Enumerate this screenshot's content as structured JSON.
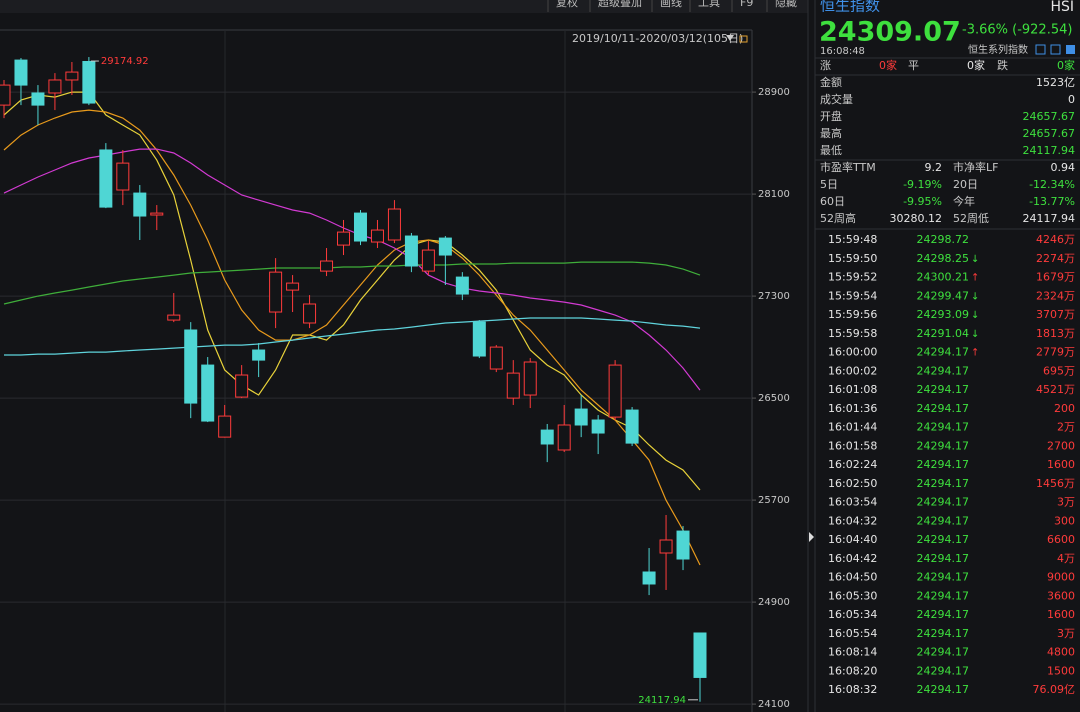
{
  "toolbar": [
    "复权",
    "超级叠加",
    "画线",
    "工具",
    "F9",
    "隐藏"
  ],
  "chart_data": {
    "type": "candlestick",
    "range_label": "2019/10/11-2020/03/12(105日)",
    "ylim": [
      24038,
      29387
    ],
    "yticks": [
      28900,
      28100,
      27300,
      26500,
      25700,
      24900,
      24100
    ],
    "grid": true,
    "up_color": "#ff3b3b",
    "down_color": "#4fd6d4",
    "candles": [
      {
        "o": 28798,
        "h": 28995,
        "l": 28696,
        "c": 28955
      },
      {
        "o": 29151,
        "h": 29167,
        "l": 28798,
        "c": 28955
      },
      {
        "o": 28893,
        "h": 28955,
        "l": 28642,
        "c": 28798
      },
      {
        "o": 28893,
        "h": 29049,
        "l": 28759,
        "c": 28995
      },
      {
        "o": 28995,
        "h": 29136,
        "l": 28877,
        "c": 29057
      },
      {
        "o": 29140,
        "h": 29174.92,
        "l": 28798,
        "c": 28814
      },
      {
        "o": 28446,
        "h": 28500,
        "l": 27990,
        "c": 27998
      },
      {
        "o": 28132,
        "h": 28446,
        "l": 28014,
        "c": 28343
      },
      {
        "o": 28108,
        "h": 28171,
        "l": 27740,
        "c": 27928
      },
      {
        "o": 27936,
        "h": 28014,
        "l": 27818,
        "c": 27951
      },
      {
        "o": 27112,
        "h": 27324,
        "l": 27096,
        "c": 27151
      },
      {
        "o": 27034,
        "h": 27096,
        "l": 26343,
        "c": 26461
      },
      {
        "o": 26759,
        "h": 26822,
        "l": 26312,
        "c": 26320
      },
      {
        "o": 26194,
        "h": 26446,
        "l": 26190,
        "c": 26359
      },
      {
        "o": 26508,
        "h": 26759,
        "l": 26500,
        "c": 26681
      },
      {
        "o": 26877,
        "h": 26932,
        "l": 26665,
        "c": 26798
      },
      {
        "o": 27175,
        "h": 27598,
        "l": 27049,
        "c": 27488
      },
      {
        "o": 27347,
        "h": 27465,
        "l": 27175,
        "c": 27402
      },
      {
        "o": 27089,
        "h": 27308,
        "l": 27049,
        "c": 27238
      },
      {
        "o": 27496,
        "h": 27677,
        "l": 27457,
        "c": 27575
      },
      {
        "o": 27700,
        "h": 27897,
        "l": 27622,
        "c": 27802
      },
      {
        "o": 27951,
        "h": 27975,
        "l": 27700,
        "c": 27732
      },
      {
        "o": 27724,
        "h": 27897,
        "l": 27677,
        "c": 27818
      },
      {
        "o": 27740,
        "h": 28053,
        "l": 27716,
        "c": 27983
      },
      {
        "o": 27771,
        "h": 27795,
        "l": 27488,
        "c": 27536
      },
      {
        "o": 27496,
        "h": 27732,
        "l": 27465,
        "c": 27661
      },
      {
        "o": 27755,
        "h": 27771,
        "l": 27387,
        "c": 27622
      },
      {
        "o": 27449,
        "h": 27488,
        "l": 27269,
        "c": 27316
      },
      {
        "o": 27096,
        "h": 27112,
        "l": 26814,
        "c": 26830
      },
      {
        "o": 26728,
        "h": 26916,
        "l": 26704,
        "c": 26900
      },
      {
        "o": 26500,
        "h": 26798,
        "l": 26446,
        "c": 26696
      },
      {
        "o": 26524,
        "h": 26814,
        "l": 26422,
        "c": 26783
      },
      {
        "o": 26249,
        "h": 26297,
        "l": 25998,
        "c": 26140
      },
      {
        "o": 26093,
        "h": 26446,
        "l": 26077,
        "c": 26289
      },
      {
        "o": 26414,
        "h": 26524,
        "l": 26194,
        "c": 26289
      },
      {
        "o": 26328,
        "h": 26367,
        "l": 26061,
        "c": 26226
      },
      {
        "o": 26351,
        "h": 26798,
        "l": 26328,
        "c": 26759
      },
      {
        "o": 26406,
        "h": 26430,
        "l": 26124,
        "c": 26147
      },
      {
        "o": 25136,
        "h": 25324,
        "l": 24955,
        "c": 25042
      },
      {
        "o": 25285,
        "h": 25583,
        "l": 24995,
        "c": 25387
      },
      {
        "o": 25457,
        "h": 25497,
        "l": 25151,
        "c": 25238
      },
      {
        "o": 24657.67,
        "h": 24657.67,
        "l": 24117.94,
        "c": 24309.07
      }
    ],
    "series": [
      {
        "color": "#e8d23a",
        "values": [
          28720,
          28838,
          28877,
          28861,
          28900,
          28900,
          28720,
          28642,
          28564,
          28367,
          28093,
          27583,
          27034,
          26720,
          26603,
          26524,
          26720,
          26995,
          26995,
          26955,
          27073,
          27269,
          27426,
          27583,
          27700,
          27740,
          27724,
          27622,
          27504,
          27347,
          27112,
          26877,
          26759,
          26681,
          26524,
          26406,
          26328,
          26265,
          26132,
          26014,
          25936,
          25779
        ]
      },
      {
        "color": "#e89a1c",
        "values": [
          28446,
          28563,
          28642,
          28697,
          28744,
          28759,
          28744,
          28697,
          28602,
          28446,
          28250,
          28014,
          27740,
          27426,
          27191,
          27034,
          26955,
          26955,
          26995,
          27073,
          27230,
          27387,
          27544,
          27661,
          27724,
          27740,
          27700,
          27598,
          27465,
          27308,
          27151,
          27034,
          26877,
          26720,
          26563,
          26446,
          26328,
          26171,
          26014,
          25700,
          25465,
          25191
        ]
      },
      {
        "color": "#d23ad2",
        "values": [
          28108,
          28171,
          28234,
          28289,
          28344,
          28383,
          28406,
          28430,
          28453,
          28453,
          28422,
          28344,
          28250,
          28171,
          28093,
          28053,
          28014,
          27975,
          27951,
          27897,
          27834,
          27779,
          27740,
          27677,
          27598,
          27465,
          27402,
          27363,
          27340,
          27324,
          27308,
          27285,
          27269,
          27253,
          27230,
          27191,
          27151,
          27097,
          26995,
          26877,
          26736,
          26563
        ]
      },
      {
        "color": "#3fae3a",
        "values": [
          27238,
          27269,
          27300,
          27324,
          27347,
          27371,
          27395,
          27418,
          27434,
          27449,
          27465,
          27481,
          27488,
          27496,
          27504,
          27512,
          27520,
          27520,
          27520,
          27520,
          27528,
          27528,
          27536,
          27536,
          27544,
          27544,
          27544,
          27552,
          27552,
          27552,
          27559,
          27559,
          27559,
          27559,
          27567,
          27567,
          27567,
          27567,
          27559,
          27544,
          27512,
          27465
        ]
      },
      {
        "color": "#5fd3dc",
        "values": [
          26838,
          26838,
          26845,
          26845,
          26853,
          26861,
          26861,
          26869,
          26877,
          26884,
          26892,
          26900,
          26908,
          26916,
          26916,
          26924,
          26940,
          26955,
          26971,
          26987,
          27002,
          27018,
          27034,
          27042,
          27057,
          27073,
          27089,
          27096,
          27104,
          27112,
          27120,
          27128,
          27128,
          27128,
          27128,
          27120,
          27112,
          27104,
          27089,
          27073,
          27065,
          27049
        ]
      }
    ]
  },
  "panel": {
    "name": "恒生指数",
    "code": "HSI",
    "last": "24309.07",
    "change": "-3.66% (-922.54)",
    "time": "16:08:48",
    "family": "恒生系列指数",
    "breadth": [
      "涨",
      "0家",
      "平",
      "0家",
      "跌",
      "0家"
    ],
    "stats": [
      {
        "label": "金额",
        "value": "1523亿"
      },
      {
        "label": "成交量",
        "value": "0"
      },
      {
        "label": "开盘",
        "value": "24657.67"
      },
      {
        "label": "最高",
        "value": "24657.67"
      },
      {
        "label": "最低",
        "value": "24117.94"
      }
    ],
    "pairs": [
      [
        "市盈率TTM",
        "9.2",
        "市净率LF",
        "0.94"
      ],
      [
        "5日",
        "-9.19%",
        "20日",
        "-12.34%"
      ],
      [
        "60日",
        "-9.95%",
        "今年",
        "-13.77%"
      ],
      [
        "52周高",
        "30280.12",
        "52周低",
        "24117.94"
      ]
    ],
    "trades": [
      {
        "time": "15:59:48",
        "price": "24298.72",
        "volume": "4246万"
      },
      {
        "time": "15:59:50",
        "price": "24298.25",
        "arrow": "↓",
        "volume": "2274万"
      },
      {
        "time": "15:59:52",
        "price": "24300.21",
        "arrow": "↑",
        "volume": "1679万"
      },
      {
        "time": "15:59:54",
        "price": "24299.47",
        "arrow": "↓",
        "volume": "2324万"
      },
      {
        "time": "15:59:56",
        "price": "24293.09",
        "arrow": "↓",
        "volume": "3707万"
      },
      {
        "time": "15:59:58",
        "price": "24291.04",
        "arrow": "↓",
        "volume": "1813万"
      },
      {
        "time": "16:00:00",
        "price": "24294.17",
        "arrow": "↑",
        "volume": "2779万"
      },
      {
        "time": "16:00:02",
        "price": "24294.17",
        "volume": "695万"
      },
      {
        "time": "16:01:08",
        "price": "24294.17",
        "volume": "4521万"
      },
      {
        "time": "16:01:36",
        "price": "24294.17",
        "volume": "200"
      },
      {
        "time": "16:01:44",
        "price": "24294.17",
        "volume": "2万"
      },
      {
        "time": "16:01:58",
        "price": "24294.17",
        "volume": "2700"
      },
      {
        "time": "16:02:24",
        "price": "24294.17",
        "volume": "1600"
      },
      {
        "time": "16:02:50",
        "price": "24294.17",
        "volume": "1456万"
      },
      {
        "time": "16:03:54",
        "price": "24294.17",
        "volume": "3万"
      },
      {
        "time": "16:04:32",
        "price": "24294.17",
        "volume": "300"
      },
      {
        "time": "16:04:40",
        "price": "24294.17",
        "volume": "6600"
      },
      {
        "time": "16:04:42",
        "price": "24294.17",
        "volume": "4万"
      },
      {
        "time": "16:04:50",
        "price": "24294.17",
        "volume": "9000"
      },
      {
        "time": "16:05:30",
        "price": "24294.17",
        "volume": "3600"
      },
      {
        "time": "16:05:34",
        "price": "24294.17",
        "volume": "1600"
      },
      {
        "time": "16:05:54",
        "price": "24294.17",
        "volume": "3万"
      },
      {
        "time": "16:08:14",
        "price": "24294.17",
        "volume": "4800"
      },
      {
        "time": "16:08:20",
        "price": "24294.17",
        "volume": "1500"
      },
      {
        "time": "16:08:32",
        "price": "24294.17",
        "volume": "76.09亿"
      }
    ]
  }
}
